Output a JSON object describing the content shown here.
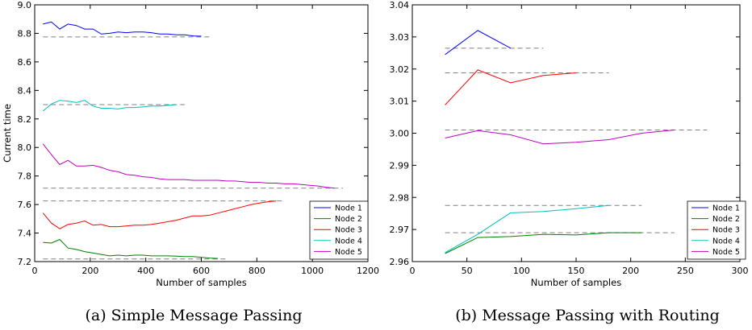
{
  "chart_data": [
    {
      "type": "line",
      "caption": "(a) Simple Message Passing",
      "xlabel": "Number of samples",
      "ylabel": "Current time",
      "xlim": [
        0,
        1200
      ],
      "ylim": [
        7.2,
        9.0
      ],
      "xticks": [
        "0",
        "200",
        "400",
        "600",
        "800",
        "1000",
        "1200"
      ],
      "yticks": [
        "7.2",
        "7.4",
        "7.6",
        "7.8",
        "8.0",
        "8.2",
        "8.4",
        "8.6",
        "8.8",
        "9.0"
      ],
      "legend_position": "lower-right",
      "series": [
        {
          "name": "Node 1",
          "color": "#0000ff",
          "x": [
            30,
            60,
            90,
            120,
            150,
            180,
            210,
            240,
            270,
            300,
            330,
            360,
            390,
            420,
            450,
            480,
            510,
            540,
            570,
            600
          ],
          "y": [
            8.865,
            8.88,
            8.83,
            8.865,
            8.855,
            8.83,
            8.83,
            8.795,
            8.8,
            8.81,
            8.805,
            8.81,
            8.81,
            8.805,
            8.795,
            8.795,
            8.79,
            8.79,
            8.782,
            8.78
          ],
          "reference": {
            "y": 8.775,
            "x": [
              30,
              630
            ]
          }
        },
        {
          "name": "Node 2",
          "color": "#008000",
          "x": [
            30,
            60,
            90,
            120,
            150,
            180,
            210,
            240,
            270,
            300,
            330,
            360,
            390,
            420,
            450,
            480,
            510,
            540,
            570,
            600,
            630,
            660
          ],
          "y": [
            7.335,
            7.33,
            7.355,
            7.295,
            7.285,
            7.27,
            7.26,
            7.25,
            7.24,
            7.245,
            7.24,
            7.245,
            7.245,
            7.24,
            7.24,
            7.24,
            7.238,
            7.235,
            7.235,
            7.23,
            7.225,
            7.222
          ],
          "reference": {
            "y": 7.218,
            "x": [
              30,
              690
            ]
          }
        },
        {
          "name": "Node 3",
          "color": "#ff0000",
          "x": [
            30,
            60,
            90,
            120,
            150,
            180,
            210,
            240,
            270,
            300,
            330,
            360,
            390,
            420,
            450,
            480,
            510,
            540,
            570,
            600,
            630,
            660,
            690,
            720,
            750,
            780,
            810,
            840,
            870
          ],
          "y": [
            7.54,
            7.47,
            7.43,
            7.46,
            7.47,
            7.485,
            7.455,
            7.46,
            7.445,
            7.445,
            7.45,
            7.455,
            7.455,
            7.46,
            7.47,
            7.48,
            7.49,
            7.505,
            7.52,
            7.52,
            7.525,
            7.54,
            7.555,
            7.57,
            7.585,
            7.6,
            7.61,
            7.62,
            7.625
          ],
          "reference": {
            "y": 7.625,
            "x": [
              30,
              900
            ]
          }
        },
        {
          "name": "Node 4",
          "color": "#00bfbf",
          "x": [
            30,
            60,
            90,
            120,
            150,
            180,
            210,
            240,
            270,
            300,
            330,
            360,
            390,
            420,
            450,
            480,
            510
          ],
          "y": [
            8.255,
            8.305,
            8.33,
            8.325,
            8.315,
            8.33,
            8.29,
            8.275,
            8.275,
            8.27,
            8.28,
            8.28,
            8.285,
            8.29,
            8.29,
            8.295,
            8.3
          ],
          "reference": {
            "y": 8.3,
            "x": [
              30,
              540
            ]
          }
        },
        {
          "name": "Node 5",
          "color": "#bf00bf",
          "x": [
            30,
            60,
            90,
            120,
            150,
            180,
            210,
            240,
            270,
            300,
            330,
            360,
            390,
            420,
            450,
            480,
            510,
            540,
            570,
            600,
            630,
            660,
            690,
            720,
            750,
            780,
            810,
            840,
            870,
            900,
            930,
            960,
            990,
            1020,
            1050,
            1080
          ],
          "y": [
            8.025,
            7.95,
            7.88,
            7.91,
            7.87,
            7.87,
            7.875,
            7.86,
            7.84,
            7.83,
            7.81,
            7.805,
            7.795,
            7.79,
            7.78,
            7.775,
            7.775,
            7.775,
            7.77,
            7.77,
            7.77,
            7.77,
            7.765,
            7.765,
            7.76,
            7.755,
            7.755,
            7.75,
            7.75,
            7.745,
            7.745,
            7.74,
            7.735,
            7.73,
            7.72,
            7.715
          ],
          "reference": {
            "y": 7.715,
            "x": [
              30,
              1110
            ]
          }
        }
      ]
    },
    {
      "type": "line",
      "caption": "(b) Message Passing with Routing",
      "xlabel": "Number of samples",
      "ylabel": "",
      "xlim": [
        0,
        300
      ],
      "ylim": [
        2.96,
        3.04
      ],
      "xticks": [
        "0",
        "50",
        "100",
        "150",
        "200",
        "250",
        "300"
      ],
      "yticks": [
        "2.96",
        "2.97",
        "2.98",
        "2.99",
        "3.00",
        "3.01",
        "3.02",
        "3.03",
        "3.04"
      ],
      "legend_position": "lower-right",
      "series": [
        {
          "name": "Node 1",
          "color": "#0000ff",
          "x": [
            30,
            60,
            90
          ],
          "y": [
            3.0245,
            3.032,
            3.0265
          ],
          "reference": {
            "y": 3.0265,
            "x": [
              30,
              120
            ]
          }
        },
        {
          "name": "Node 2",
          "color": "#008000",
          "x": [
            30,
            60,
            90,
            120,
            150,
            180,
            210
          ],
          "y": [
            2.9625,
            2.9675,
            2.9678,
            2.9685,
            2.9683,
            2.969,
            2.969
          ],
          "reference": {
            "y": 2.969,
            "x": [
              30,
              240
            ]
          }
        },
        {
          "name": "Node 3",
          "color": "#ff0000",
          "x": [
            30,
            60,
            90,
            120,
            150
          ],
          "y": [
            3.0088,
            3.0197,
            3.0157,
            3.018,
            3.0188
          ],
          "reference": {
            "y": 3.0188,
            "x": [
              30,
              180
            ]
          }
        },
        {
          "name": "Node 4",
          "color": "#00bfbf",
          "x": [
            30,
            60,
            90,
            120,
            150,
            180
          ],
          "y": [
            2.9628,
            2.9685,
            2.9752,
            2.9756,
            2.9765,
            2.9775
          ],
          "reference": {
            "y": 2.9775,
            "x": [
              30,
              210
            ]
          }
        },
        {
          "name": "Node 5",
          "color": "#bf00bf",
          "x": [
            30,
            60,
            90,
            120,
            150,
            180,
            210,
            240
          ],
          "y": [
            2.9985,
            3.0008,
            2.9995,
            2.9967,
            2.9972,
            2.998,
            3.0,
            3.001
          ],
          "reference": {
            "y": 3.001,
            "x": [
              30,
              270
            ]
          }
        }
      ]
    }
  ]
}
